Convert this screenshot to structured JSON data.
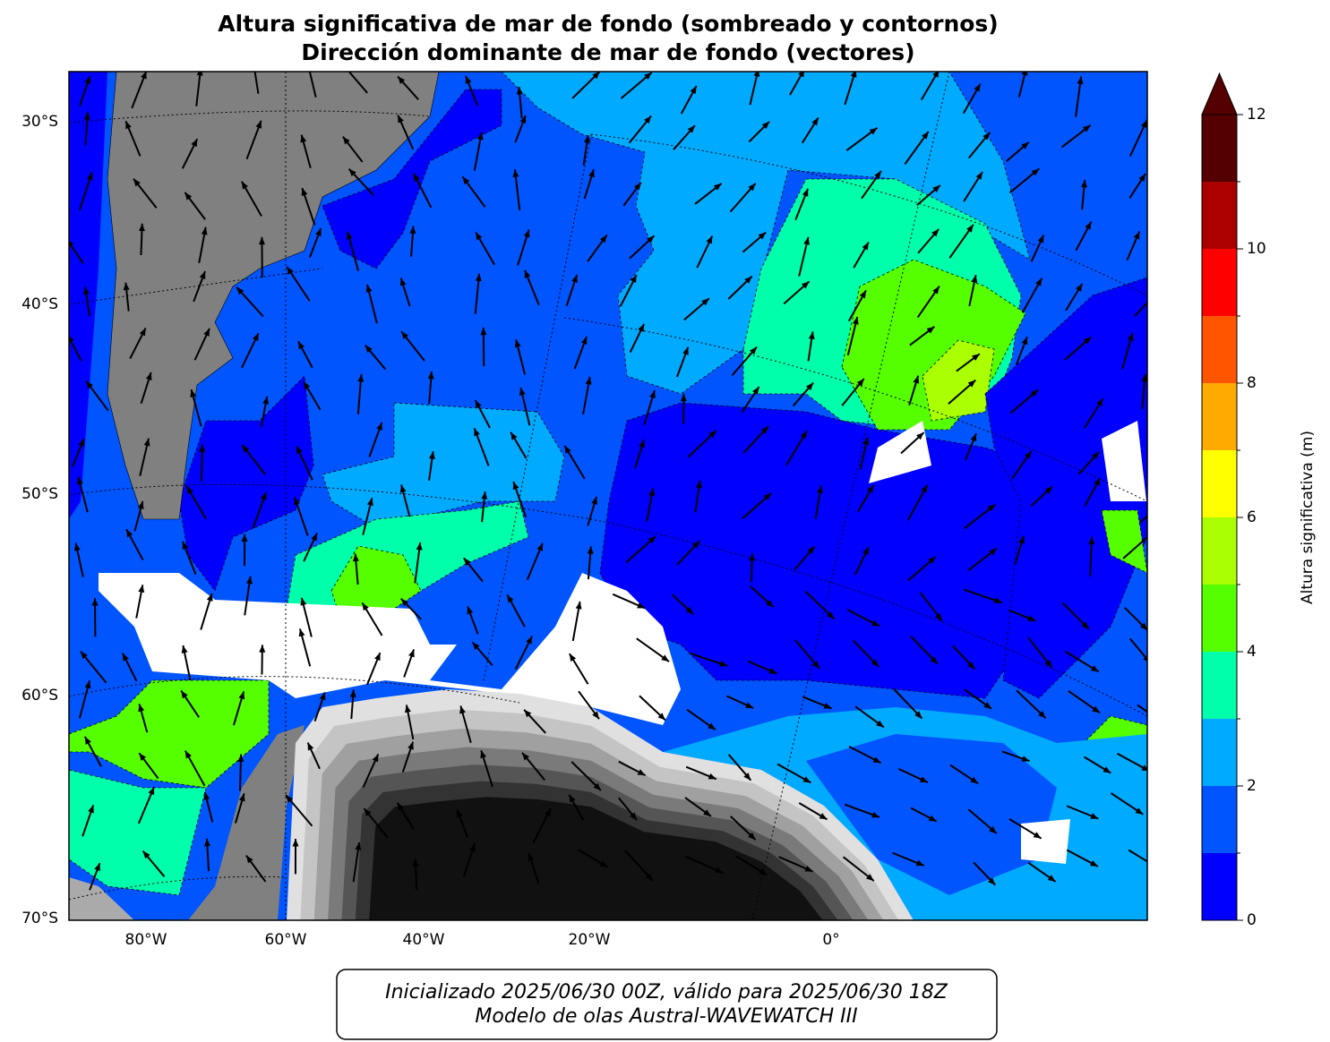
{
  "title": [
    "Altura significativa de mar de fondo (sombreado y contornos)",
    "Dirección dominante de mar de fondo (vectores)"
  ],
  "map": {
    "lat_ticks": [
      {
        "value": -30,
        "label": "30°S"
      },
      {
        "value": -40,
        "label": "40°S"
      },
      {
        "value": -50,
        "label": "50°S"
      },
      {
        "value": -60,
        "label": "60°S"
      },
      {
        "value": -70,
        "label": "70°S"
      }
    ],
    "lon_ticks": [
      {
        "value": -80,
        "label": "80°W"
      },
      {
        "value": -60,
        "label": "60°W"
      },
      {
        "value": -40,
        "label": "40°W"
      },
      {
        "value": -20,
        "label": "20°W"
      },
      {
        "value": 0,
        "label": "0°"
      }
    ]
  },
  "colorbar": {
    "label": "Altura significativa (m)",
    "levels": [
      0,
      1,
      2,
      3,
      4,
      5,
      6,
      7,
      8,
      9,
      10,
      11,
      12
    ],
    "colors": [
      "#0000ff",
      "#0055ff",
      "#00aaff",
      "#00ffaa",
      "#55ff00",
      "#aaff00",
      "#ffff00",
      "#ffaa00",
      "#ff5500",
      "#ff0000",
      "#aa0000",
      "#550000"
    ],
    "extend": "max",
    "ticks": [
      0,
      2,
      4,
      6,
      8,
      10,
      12
    ]
  },
  "footer": [
    "Inicializado 2025/06/30 00Z, válido para 2025/06/30 18Z",
    "Modelo de olas Austral-WAVEWATCH III"
  ]
}
